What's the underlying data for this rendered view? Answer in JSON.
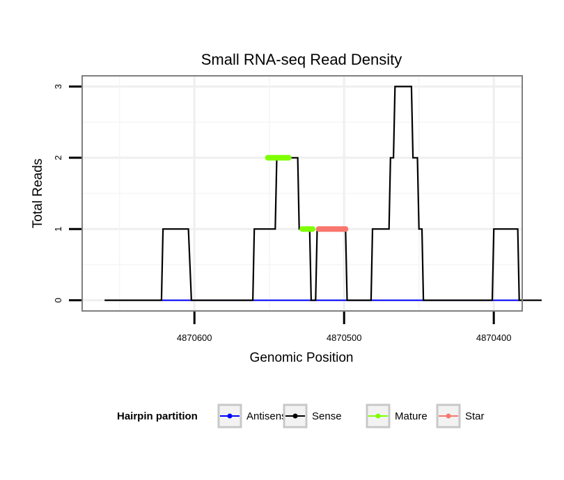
{
  "chart_data": {
    "type": "line",
    "title": "Small RNA-seq Read Density",
    "xlabel": "Genomic Position",
    "ylabel": "Total Reads",
    "xlim": [
      4870675,
      4870381
    ],
    "ylim": [
      -0.15,
      3.15
    ],
    "x_reversed": true,
    "grid": true,
    "x_ticks": [
      4870600,
      4870500,
      4870400
    ],
    "x_tick_labels": [
      "4870600",
      "4870500",
      "4870400"
    ],
    "y_ticks": [
      0,
      1,
      2,
      3
    ],
    "y_tick_labels": [
      "0",
      "1",
      "2",
      "3"
    ],
    "legend_position": "bottom",
    "legend_title": "Hairpin partition",
    "series": [
      {
        "name": "Sense",
        "color": "#000000",
        "style": "line",
        "points": [
          [
            4870660,
            0
          ],
          [
            4870622,
            0
          ],
          [
            4870621,
            1
          ],
          [
            4870604,
            1
          ],
          [
            4870602,
            0
          ],
          [
            4870561,
            0
          ],
          [
            4870560,
            1
          ],
          [
            4870546,
            1
          ],
          [
            4870545,
            2
          ],
          [
            4870531,
            2
          ],
          [
            4870530,
            1
          ],
          [
            4870523,
            1
          ],
          [
            4870522,
            0
          ],
          [
            4870519,
            0
          ],
          [
            4870518,
            1
          ],
          [
            4870499,
            1
          ],
          [
            4870498,
            0
          ],
          [
            4870482,
            0
          ],
          [
            4870481,
            1
          ],
          [
            4870470,
            1
          ],
          [
            4870469,
            2
          ],
          [
            4870467,
            2
          ],
          [
            4870466,
            3
          ],
          [
            4870455,
            3
          ],
          [
            4870454,
            2
          ],
          [
            4870451,
            2
          ],
          [
            4870450,
            1
          ],
          [
            4870448,
            1
          ],
          [
            4870447,
            0
          ],
          [
            4870401,
            0
          ],
          [
            4870400,
            1
          ],
          [
            4870384,
            1
          ],
          [
            4870383,
            0
          ],
          [
            4870368,
            0
          ]
        ]
      },
      {
        "name": "Antisense",
        "color": "#0000ff",
        "style": "line",
        "points": [
          [
            4870622,
            0
          ],
          [
            4870383,
            0
          ]
        ]
      },
      {
        "name": "Mature",
        "color": "#7fff00",
        "style": "thick",
        "segments": [
          [
            [
              4870551,
              2
            ],
            [
              4870537,
              2
            ]
          ],
          [
            [
              4870528,
              1
            ],
            [
              4870521,
              1
            ]
          ]
        ]
      },
      {
        "name": "Star",
        "color": "#f8766d",
        "style": "thick",
        "segments": [
          [
            [
              4870517,
              1
            ],
            [
              4870499,
              1
            ]
          ]
        ]
      }
    ]
  }
}
